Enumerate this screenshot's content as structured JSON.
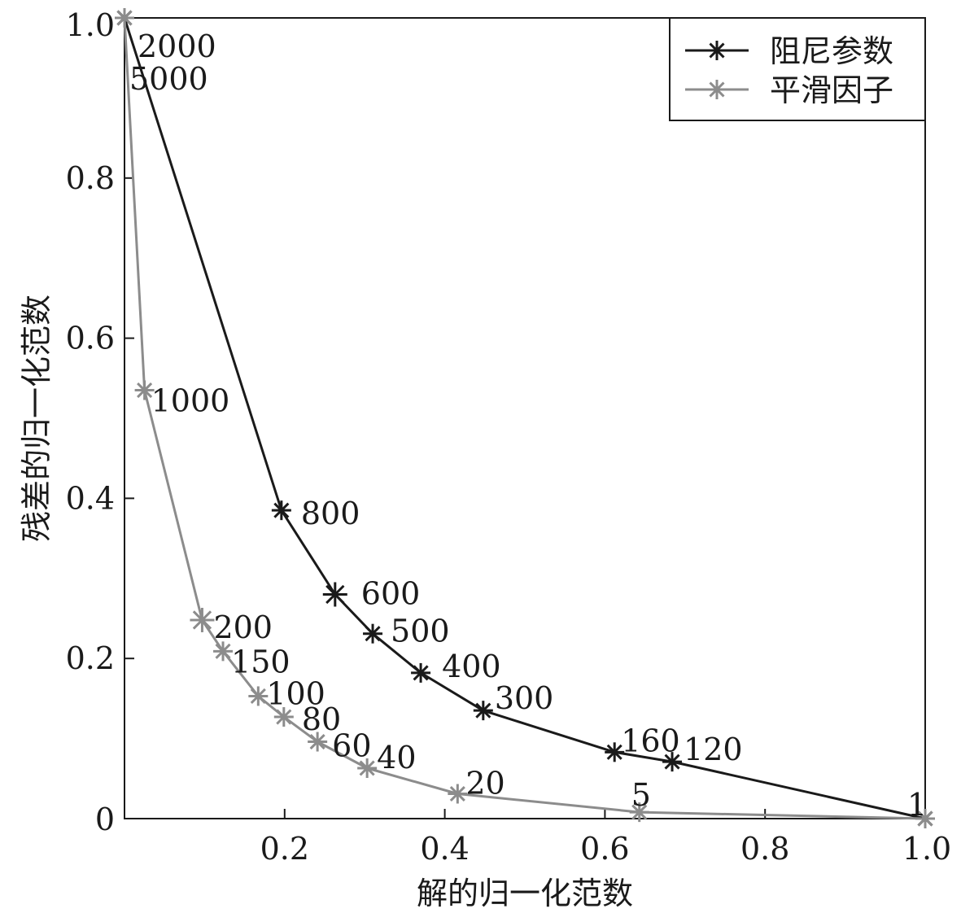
{
  "chart_data": {
    "type": "line",
    "xlabel": "解的归一化范数",
    "ylabel": "残差的归一化范数",
    "xlim": [
      0,
      1.0
    ],
    "ylim": [
      0,
      1.0
    ],
    "x_ticks": [
      {
        "value": 0.2,
        "label": "0.2"
      },
      {
        "value": 0.4,
        "label": "0.4"
      },
      {
        "value": 0.6,
        "label": "0.6"
      },
      {
        "value": 0.8,
        "label": "0.8"
      },
      {
        "value": 1.0,
        "label": "1.0"
      }
    ],
    "y_ticks": [
      {
        "value": 0,
        "label": "0"
      },
      {
        "value": 0.2,
        "label": "0.2"
      },
      {
        "value": 0.4,
        "label": "0.4"
      },
      {
        "value": 0.6,
        "label": "0.6"
      },
      {
        "value": 0.8,
        "label": "0.8"
      },
      {
        "value": 1.0,
        "label": "1.0"
      }
    ],
    "grid": false,
    "legend_position": "top-right",
    "series": [
      {
        "name": "阻尼参数",
        "color": "#1a1a1a",
        "marker": "asterisk",
        "points": [
          {
            "x": 0.0,
            "y": 1.0,
            "label": "2000"
          },
          {
            "x": 0.196,
            "y": 0.385,
            "label": "800"
          },
          {
            "x": 0.263,
            "y": 0.28,
            "label": "600"
          },
          {
            "x": 0.31,
            "y": 0.231,
            "label": "500"
          },
          {
            "x": 0.37,
            "y": 0.182,
            "label": "400"
          },
          {
            "x": 0.448,
            "y": 0.135,
            "label": "300"
          },
          {
            "x": 0.612,
            "y": 0.083,
            "label": "160"
          },
          {
            "x": 0.684,
            "y": 0.071,
            "label": "120"
          },
          {
            "x": 1.0,
            "y": 0.0,
            "label": "1"
          }
        ]
      },
      {
        "name": "平滑因子",
        "color": "#8c8c8c",
        "marker": "asterisk",
        "points": [
          {
            "x": 0.0,
            "y": 1.0,
            "label": "5000"
          },
          {
            "x": 0.025,
            "y": 0.535,
            "label": "1000"
          },
          {
            "x": 0.097,
            "y": 0.248,
            "label": "200"
          },
          {
            "x": 0.123,
            "y": 0.209,
            "label": "150"
          },
          {
            "x": 0.167,
            "y": 0.153,
            "label": "100"
          },
          {
            "x": 0.199,
            "y": 0.127,
            "label": "80"
          },
          {
            "x": 0.241,
            "y": 0.096,
            "label": "60"
          },
          {
            "x": 0.303,
            "y": 0.063,
            "label": "40"
          },
          {
            "x": 0.416,
            "y": 0.031,
            "label": "20"
          },
          {
            "x": 0.643,
            "y": 0.008,
            "label": "5"
          },
          {
            "x": 1.0,
            "y": 0.0,
            "label": ""
          }
        ]
      }
    ]
  }
}
